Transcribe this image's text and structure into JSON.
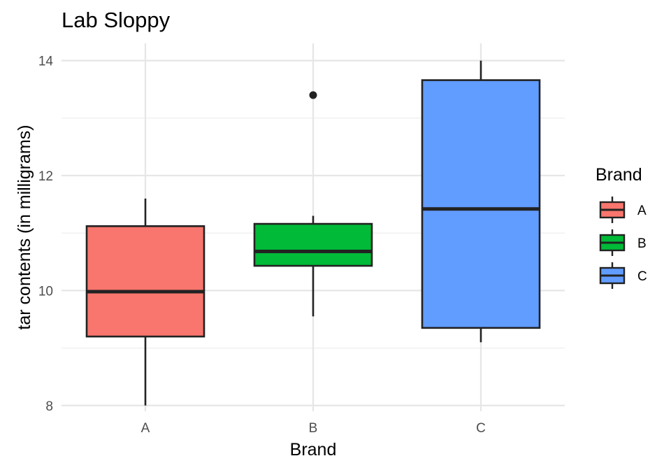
{
  "chart_data": {
    "type": "boxplot",
    "title": "Lab Sloppy",
    "xlabel": "Brand",
    "ylabel": "tar contents (in milligrams)",
    "categories": [
      "A",
      "B",
      "C"
    ],
    "ylim": [
      7.9,
      14.3
    ],
    "y_ticks": [
      8,
      10,
      12,
      14
    ],
    "grid": true,
    "legend": {
      "title": "Brand",
      "placement": "right",
      "entries": [
        "A",
        "B",
        "C"
      ]
    },
    "boxes": [
      {
        "category": "A",
        "whisker_low": 8.0,
        "q1": 9.2,
        "median": 9.98,
        "q3": 11.12,
        "whisker_high": 11.6,
        "outliers": []
      },
      {
        "category": "B",
        "whisker_low": 9.55,
        "q1": 10.43,
        "median": 10.68,
        "q3": 11.16,
        "whisker_high": 11.3,
        "outliers": [
          13.4
        ]
      },
      {
        "category": "C",
        "whisker_low": 9.1,
        "q1": 9.35,
        "median": 11.42,
        "q3": 13.66,
        "whisker_high": 14.0,
        "outliers": []
      }
    ],
    "colors": {
      "A": "#F8766D",
      "B": "#00BA38",
      "C": "#619CFF"
    }
  }
}
